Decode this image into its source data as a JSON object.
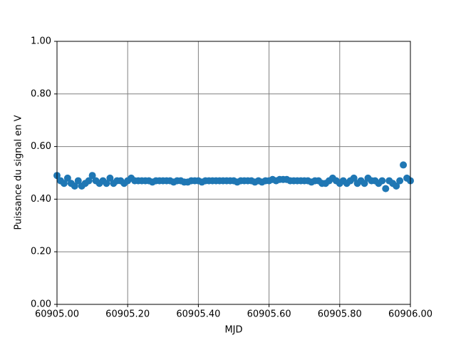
{
  "chart_data": {
    "type": "scatter",
    "xlabel": "MJD",
    "ylabel": "Puissance du signal en V",
    "color": "#1f77b4",
    "grid": true,
    "xlim": [
      60905.0,
      60906.0
    ],
    "xticks": [
      {
        "value": 60905.0,
        "label": "60905.00"
      },
      {
        "value": 60905.2,
        "label": "60905.20"
      },
      {
        "value": 60905.4,
        "label": "60905.40"
      },
      {
        "value": 60905.6,
        "label": "60905.60"
      },
      {
        "value": 60905.8,
        "label": "60905.80"
      },
      {
        "value": 60906.0,
        "label": "60906.00"
      }
    ],
    "ylim": [
      0,
      1
    ],
    "yticks": [
      {
        "value": 0,
        "label": "0.00"
      },
      {
        "value": 0.2,
        "label": "0.20"
      },
      {
        "value": 0.4,
        "label": "0.40"
      },
      {
        "value": 0.6,
        "label": "0.60"
      },
      {
        "value": 0.8,
        "label": "0.80"
      },
      {
        "value": 1,
        "label": "1.00"
      }
    ],
    "x": [
      60905.0,
      60905.01,
      60905.02,
      60905.03,
      60905.04,
      60905.05,
      60905.06,
      60905.07,
      60905.08,
      60905.09,
      60905.1,
      60905.11,
      60905.12,
      60905.13,
      60905.14,
      60905.15,
      60905.16,
      60905.17,
      60905.18,
      60905.19,
      60905.2,
      60905.21,
      60905.22,
      60905.23,
      60905.24,
      60905.25,
      60905.26,
      60905.27,
      60905.28,
      60905.29,
      60905.3,
      60905.31,
      60905.32,
      60905.33,
      60905.34,
      60905.35,
      60905.36,
      60905.37,
      60905.38,
      60905.39,
      60905.4,
      60905.41,
      60905.42,
      60905.43,
      60905.44,
      60905.45,
      60905.46,
      60905.47,
      60905.48,
      60905.49,
      60905.5,
      60905.51,
      60905.52,
      60905.53,
      60905.54,
      60905.55,
      60905.56,
      60905.57,
      60905.58,
      60905.59,
      60905.6,
      60905.61,
      60905.62,
      60905.63,
      60905.64,
      60905.65,
      60905.66,
      60905.67,
      60905.68,
      60905.69,
      60905.7,
      60905.71,
      60905.72,
      60905.73,
      60905.74,
      60905.75,
      60905.76,
      60905.77,
      60905.78,
      60905.79,
      60905.8,
      60905.81,
      60905.82,
      60905.83,
      60905.84,
      60905.85,
      60905.86,
      60905.87,
      60905.88,
      60905.89,
      60905.9,
      60905.91,
      60905.92,
      60905.93,
      60905.94,
      60905.95,
      60905.96,
      60905.97,
      60905.98,
      60905.99,
      60906.0
    ],
    "values": [
      0.49,
      0.47,
      0.46,
      0.48,
      0.46,
      0.45,
      0.47,
      0.45,
      0.46,
      0.47,
      0.49,
      0.47,
      0.46,
      0.47,
      0.46,
      0.48,
      0.46,
      0.47,
      0.47,
      0.46,
      0.47,
      0.48,
      0.47,
      0.47,
      0.47,
      0.47,
      0.47,
      0.465,
      0.47,
      0.47,
      0.47,
      0.47,
      0.47,
      0.465,
      0.47,
      0.47,
      0.465,
      0.465,
      0.47,
      0.47,
      0.47,
      0.465,
      0.47,
      0.47,
      0.47,
      0.47,
      0.47,
      0.47,
      0.47,
      0.47,
      0.47,
      0.465,
      0.47,
      0.47,
      0.47,
      0.47,
      0.465,
      0.47,
      0.465,
      0.47,
      0.47,
      0.475,
      0.47,
      0.475,
      0.475,
      0.475,
      0.47,
      0.47,
      0.47,
      0.47,
      0.47,
      0.47,
      0.465,
      0.47,
      0.47,
      0.46,
      0.46,
      0.47,
      0.48,
      0.47,
      0.46,
      0.47,
      0.46,
      0.47,
      0.48,
      0.46,
      0.47,
      0.46,
      0.48,
      0.47,
      0.47,
      0.46,
      0.47,
      0.44,
      0.47,
      0.46,
      0.45,
      0.47,
      0.53,
      0.48,
      0.47
    ]
  }
}
